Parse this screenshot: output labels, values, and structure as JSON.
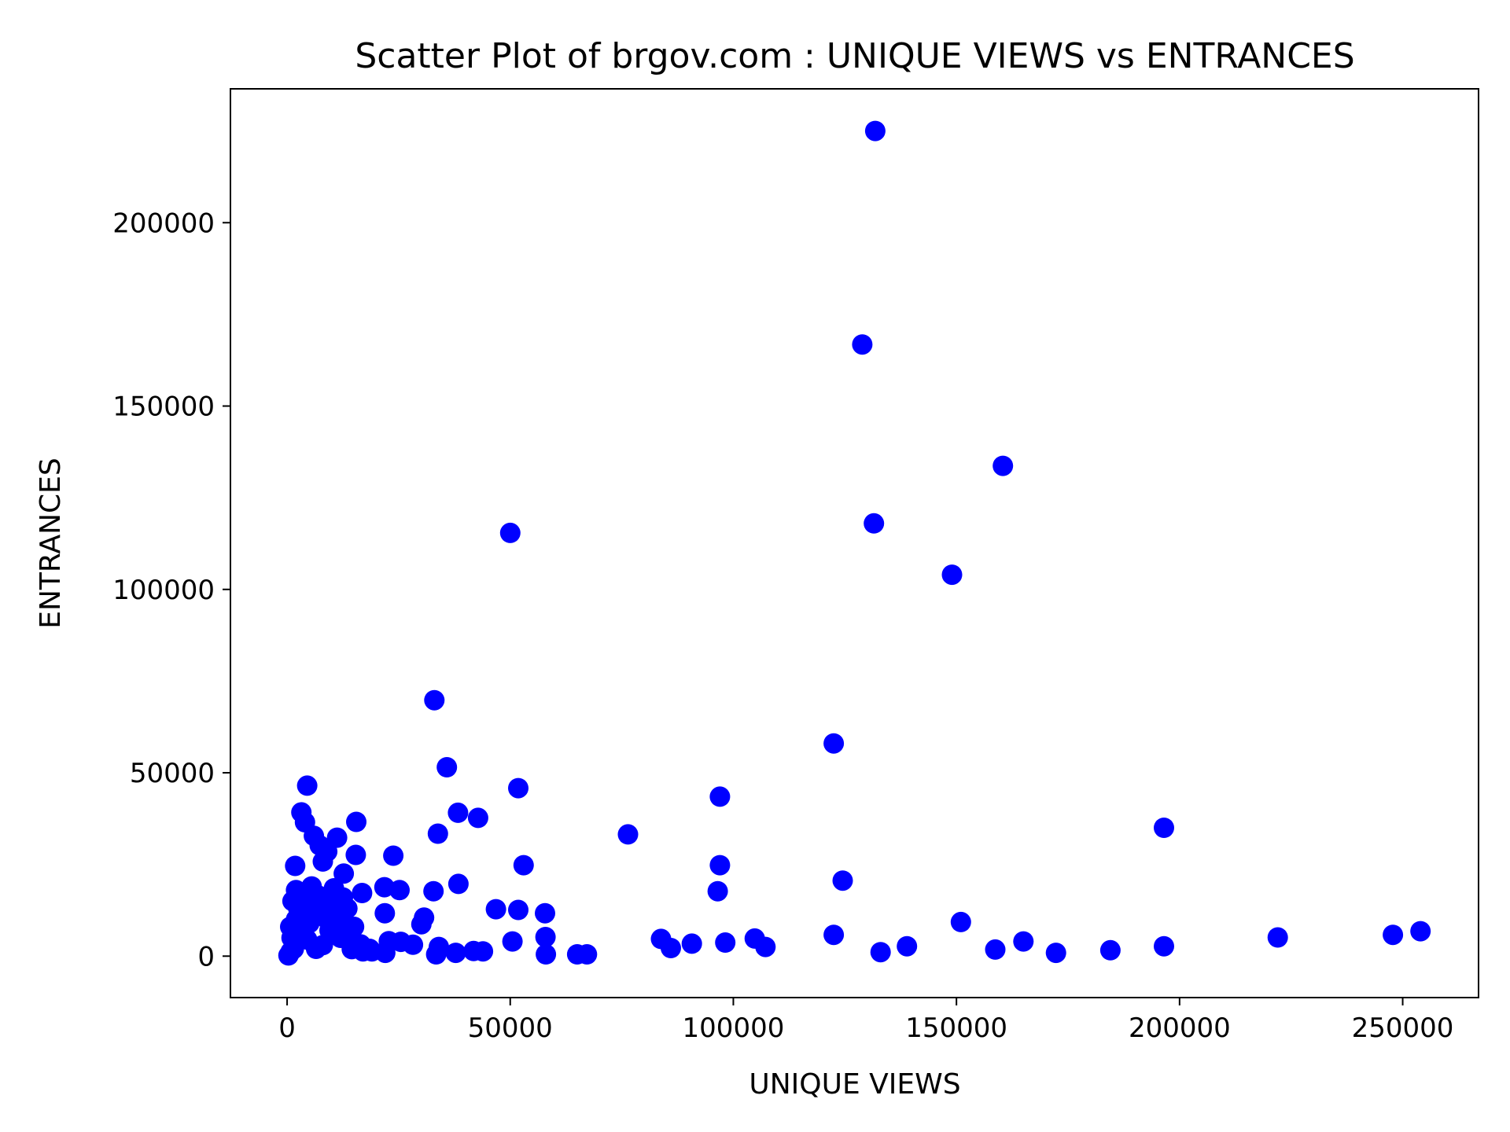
{
  "chart_data": {
    "type": "scatter",
    "title": "Scatter Plot of brgov.com : UNIQUE VIEWS vs ENTRANCES",
    "xlabel": "UNIQUE VIEWS",
    "ylabel": "ENTRANCES",
    "xlim": [
      -12700,
      267000
    ],
    "ylim": [
      -11300,
      236500
    ],
    "xticks": [
      0,
      50000,
      100000,
      150000,
      200000,
      250000
    ],
    "yticks": [
      0,
      50000,
      100000,
      150000,
      200000
    ],
    "xtick_labels": [
      "0",
      "50000",
      "100000",
      "150000",
      "200000",
      "250000"
    ],
    "ytick_labels": [
      "0",
      "50000",
      "100000",
      "150000",
      "200000"
    ],
    "grid": false,
    "legend": false,
    "marker_color": "#0000ff",
    "series": [
      {
        "points": [
          [
            131800,
            225000
          ],
          [
            128900,
            166800
          ],
          [
            160400,
            133700
          ],
          [
            131500,
            118000
          ],
          [
            50000,
            115400
          ],
          [
            149000,
            104000
          ],
          [
            33000,
            69800
          ],
          [
            122500,
            58000
          ],
          [
            35800,
            51500
          ],
          [
            51800,
            45800
          ],
          [
            97000,
            43500
          ],
          [
            4500,
            46500
          ],
          [
            38300,
            39100
          ],
          [
            42800,
            37700
          ],
          [
            15500,
            36600
          ],
          [
            3200,
            39200
          ],
          [
            4000,
            36500
          ],
          [
            196500,
            35000
          ],
          [
            76400,
            33200
          ],
          [
            33800,
            33400
          ],
          [
            11200,
            32300
          ],
          [
            6000,
            32800
          ],
          [
            7300,
            30200
          ],
          [
            9000,
            28500
          ],
          [
            23800,
            27400
          ],
          [
            15400,
            27600
          ],
          [
            8000,
            25800
          ],
          [
            53000,
            24800
          ],
          [
            97000,
            24800
          ],
          [
            1800,
            24600
          ],
          [
            12700,
            22500
          ],
          [
            124500,
            20600
          ],
          [
            38400,
            19700
          ],
          [
            21800,
            18800
          ],
          [
            25200,
            18000
          ],
          [
            32800,
            17700
          ],
          [
            96500,
            17700
          ],
          [
            16800,
            17200
          ],
          [
            2000,
            18000
          ],
          [
            46800,
            12800
          ],
          [
            51800,
            12600
          ],
          [
            57800,
            11700
          ],
          [
            21900,
            11700
          ],
          [
            30700,
            10500
          ],
          [
            151000,
            9300
          ],
          [
            30100,
            8700
          ],
          [
            254000,
            6800
          ],
          [
            247800,
            5800
          ],
          [
            122500,
            5800
          ],
          [
            57900,
            5200
          ],
          [
            222000,
            5100
          ],
          [
            104800,
            4800
          ],
          [
            83800,
            4700
          ],
          [
            50500,
            4000
          ],
          [
            165000,
            4000
          ],
          [
            98200,
            3700
          ],
          [
            90700,
            3400
          ],
          [
            22800,
            4100
          ],
          [
            25500,
            3900
          ],
          [
            28200,
            3100
          ],
          [
            107200,
            2500
          ],
          [
            86000,
            2200
          ],
          [
            138900,
            2700
          ],
          [
            196500,
            2700
          ],
          [
            158700,
            1800
          ],
          [
            184500,
            1600
          ],
          [
            133000,
            1100
          ],
          [
            172300,
            900
          ],
          [
            43900,
            1300
          ],
          [
            41800,
            1400
          ],
          [
            37800,
            900
          ],
          [
            33400,
            500
          ],
          [
            65000,
            500
          ],
          [
            67200,
            500
          ],
          [
            58000,
            500
          ],
          [
            34000,
            2500
          ],
          [
            22000,
            900
          ],
          [
            17000,
            1300
          ],
          [
            14500,
            1900
          ],
          [
            19000,
            1300
          ],
          [
            6000,
            14000
          ],
          [
            7500,
            12000
          ],
          [
            9000,
            10000
          ],
          [
            5000,
            9000
          ],
          [
            3000,
            7000
          ],
          [
            1000,
            5000
          ],
          [
            8000,
            3000
          ],
          [
            12000,
            5000
          ],
          [
            10000,
            15000
          ],
          [
            13000,
            9000
          ],
          [
            6500,
            2000
          ],
          [
            4000,
            11000
          ],
          [
            2500,
            13000
          ],
          [
            11000,
            12000
          ],
          [
            14000,
            4000
          ],
          [
            300,
            200
          ],
          [
            1500,
            2000
          ],
          [
            700,
            8000
          ],
          [
            5500,
            19000
          ],
          [
            9500,
            7000
          ],
          [
            16500,
            3200
          ],
          [
            18500,
            2000
          ],
          [
            7000,
            16500
          ],
          [
            3500,
            15500
          ],
          [
            12500,
            16000
          ],
          [
            10500,
            18500
          ],
          [
            2000,
            10000
          ],
          [
            4500,
            4500
          ],
          [
            800,
            1200
          ],
          [
            1200,
            15000
          ],
          [
            15000,
            8000
          ],
          [
            13500,
            13000
          ]
        ]
      }
    ]
  }
}
